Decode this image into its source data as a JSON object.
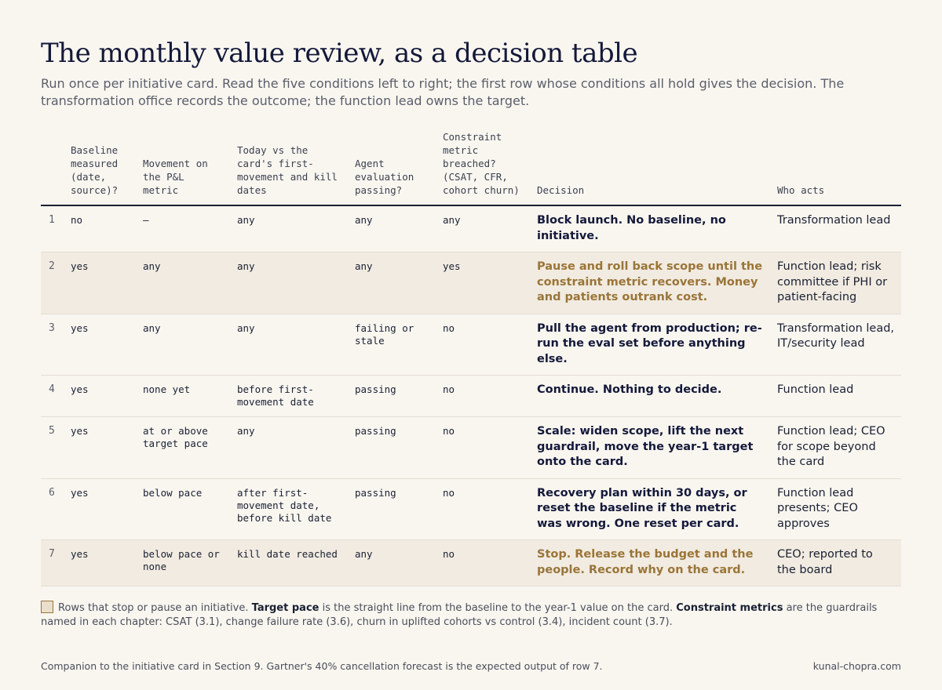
{
  "title": "The monthly value review, as a decision table",
  "subtitle": "Run once per initiative card. Read the five conditions left to right; the first row whose conditions all hold gives the decision. The transformation office records the outcome; the function lead owns the target.",
  "columns": [
    "",
    "Baseline measured (date, source)?",
    "Movement on the P&L metric",
    "Today vs the card's first-movement and kill dates",
    "Agent evaluation passing?",
    "Constraint metric breached? (CSAT, CFR, cohort churn)",
    "Decision",
    "Who acts"
  ],
  "rows": [
    {
      "num": "1",
      "baseline": "no",
      "movement": "—",
      "today": "any",
      "agent": "any",
      "constraint": "any",
      "decision": "Block launch. No baseline, no initiative.",
      "who": "Transformation lead",
      "highlight": false
    },
    {
      "num": "2",
      "baseline": "yes",
      "movement": "any",
      "today": "any",
      "agent": "any",
      "constraint": "yes",
      "decision": "Pause and roll back scope until the constraint metric recovers. Money and patients outrank cost.",
      "who": "Function lead; risk committee if PHI or patient-facing",
      "highlight": true
    },
    {
      "num": "3",
      "baseline": "yes",
      "movement": "any",
      "today": "any",
      "agent": "failing or stale",
      "constraint": "no",
      "decision": "Pull the agent from production; re-run the eval set before anything else.",
      "who": "Transformation lead, IT/security lead",
      "highlight": false
    },
    {
      "num": "4",
      "baseline": "yes",
      "movement": "none yet",
      "today": "before first-movement date",
      "agent": "passing",
      "constraint": "no",
      "decision": "Continue. Nothing to decide.",
      "who": "Function lead",
      "highlight": false
    },
    {
      "num": "5",
      "baseline": "yes",
      "movement": "at or above target pace",
      "today": "any",
      "agent": "passing",
      "constraint": "no",
      "decision": "Scale: widen scope, lift the next guardrail, move the year-1 target onto the card.",
      "who": "Function lead; CEO for scope beyond the card",
      "highlight": false
    },
    {
      "num": "6",
      "baseline": "yes",
      "movement": "below pace",
      "today": "after first-movement date, before kill date",
      "agent": "passing",
      "constraint": "no",
      "decision": "Recovery plan within 30 days, or reset the baseline if the metric was wrong. One reset per card.",
      "who": "Function lead presents; CEO approves",
      "highlight": false
    },
    {
      "num": "7",
      "baseline": "yes",
      "movement": "below pace or none",
      "today": "kill date reached",
      "agent": "any",
      "constraint": "no",
      "decision": "Stop. Release the budget and the people. Record why on the card.",
      "who": "CEO; reported to the board",
      "highlight": true
    }
  ],
  "legend": {
    "text1": "Rows that stop or pause an initiative. ",
    "term1": "Target pace",
    "text2": " is the straight line from the baseline to the year-1 value on the card. ",
    "term2": "Constraint metrics",
    "text3": " are the guardrails named in each chapter: CSAT (3.1), change failure rate (3.6), churn in uplifted cohorts vs control (3.4), incident count (3.7)."
  },
  "footer": {
    "left": "Companion to the initiative card in Section 9. Gartner's 40% cancellation forecast is the expected output of row 7.",
    "right": "kunal-chopra.com"
  },
  "colors": {
    "background": "#f9f6f0",
    "highlight_row": "#f1ebe1",
    "highlight_text": "#9a7538",
    "ink": "#14193a"
  }
}
